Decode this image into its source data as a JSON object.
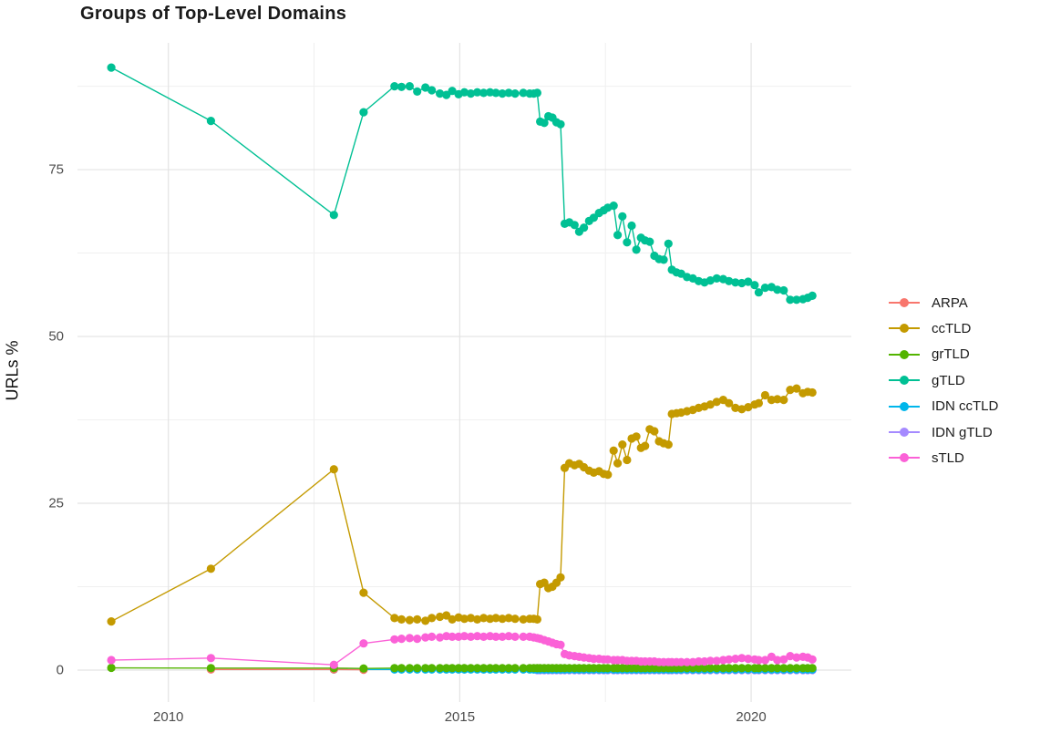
{
  "chart_data": {
    "type": "line",
    "title": "Groups of Top-Level Domains",
    "xlabel": "",
    "ylabel": "URLs %",
    "x_axis": {
      "range": [
        2008.44,
        2021.72
      ],
      "ticks_major": [
        2010,
        2015,
        2020
      ],
      "ticks_minor": [
        2012.5,
        2017.5
      ],
      "tick_labels": [
        "2010",
        "2015",
        "2020"
      ]
    },
    "y_axis": {
      "range": [
        -4.78,
        94.0
      ],
      "ticks_major": [
        0,
        25,
        50,
        75
      ],
      "ticks_minor": [
        12.5,
        37.5,
        62.5,
        87.5
      ],
      "tick_labels": [
        "0",
        "25",
        "50",
        "75"
      ]
    },
    "legend_position": "right",
    "grid": "on",
    "x_grids": {
      "early": [
        2009.02,
        2010.73,
        2012.84,
        2013.35
      ],
      "plateau": [
        2013.88,
        2014.0,
        2014.14,
        2014.27,
        2014.41,
        2014.52,
        2014.66,
        2014.77,
        2014.87,
        2014.98,
        2015.08,
        2015.19,
        2015.3,
        2015.41,
        2015.52,
        2015.62,
        2015.73,
        2015.84,
        2015.95,
        2016.09,
        2016.2,
        2016.27,
        2016.33
      ],
      "step": [
        2016.38,
        2016.45,
        2016.52,
        2016.59,
        2016.66,
        2016.73
      ],
      "late": [
        2016.8,
        2016.88,
        2016.97,
        2017.05,
        2017.13,
        2017.22,
        2017.3,
        2017.39,
        2017.47,
        2017.54,
        2017.64,
        2017.71,
        2017.79,
        2017.87,
        2017.95,
        2018.03,
        2018.11,
        2018.18,
        2018.26,
        2018.34,
        2018.42,
        2018.5,
        2018.58,
        2018.64,
        2018.72,
        2018.8,
        2018.9,
        2019.0,
        2019.1,
        2019.2,
        2019.3,
        2019.41,
        2019.52,
        2019.62,
        2019.73,
        2019.84,
        2019.95,
        2020.06,
        2020.13,
        2020.24,
        2020.35,
        2020.45,
        2020.56,
        2020.67,
        2020.78,
        2020.89,
        2020.97,
        2021.05
      ]
    },
    "series": [
      {
        "name": "ARPA",
        "color": "#F8766D",
        "draw_order": 3,
        "segments": [
          {
            "points": [
              [
                2010.73,
                0.1
              ],
              [
                2012.84,
                0.1
              ],
              [
                2013.35,
                0.05
              ]
            ]
          }
        ]
      },
      {
        "name": "ccTLD",
        "color": "#C49A00",
        "draw_order": 6,
        "segments": [
          {
            "points": [
              [
                2009.02,
                7.3
              ],
              [
                2010.73,
                15.2
              ],
              [
                2012.84,
                30.1
              ],
              [
                2013.35,
                11.6
              ]
            ]
          },
          {
            "x_ref": "plateau",
            "y": [
              7.8,
              7.6,
              7.5,
              7.6,
              7.4,
              7.8,
              8.0,
              8.2,
              7.6,
              7.9,
              7.7,
              7.8,
              7.6,
              7.8,
              7.7,
              7.8,
              7.7,
              7.8,
              7.7,
              7.6,
              7.7,
              7.7,
              7.6
            ]
          },
          {
            "x_ref": "step",
            "y": [
              12.9,
              13.1,
              12.3,
              12.5,
              13.1,
              13.9
            ]
          },
          {
            "x_ref": "late",
            "y": [
              30.3,
              31.0,
              30.7,
              30.9,
              30.4,
              29.9,
              29.6,
              29.8,
              29.4,
              29.3,
              32.9,
              31.0,
              33.8,
              31.5,
              34.7,
              35.0,
              33.3,
              33.6,
              36.1,
              35.8,
              34.3,
              34.0,
              33.8,
              38.4,
              38.5,
              38.6,
              38.8,
              39.0,
              39.3,
              39.5,
              39.8,
              40.2,
              40.5,
              40.0,
              39.3,
              39.1,
              39.4,
              39.8,
              40.0,
              41.2,
              40.5,
              40.6,
              40.5,
              42.0,
              42.2,
              41.5,
              41.7,
              41.6
            ]
          }
        ]
      },
      {
        "name": "grTLD",
        "color": "#53B400",
        "draw_order": 4,
        "segments": [
          {
            "points": [
              [
                2009.02,
                0.35
              ],
              [
                2010.73,
                0.3
              ],
              [
                2012.84,
                0.3
              ],
              [
                2013.35,
                0.25
              ]
            ]
          },
          {
            "x_ref": "plateau",
            "y_const": 0.3
          },
          {
            "x_ref": "step",
            "y_const": 0.3
          },
          {
            "x_ref": "late",
            "y_const": 0.3
          }
        ]
      },
      {
        "name": "gTLD",
        "color": "#00C094",
        "draw_order": 7,
        "segments": [
          {
            "points": [
              [
                2009.02,
                90.3
              ],
              [
                2010.73,
                82.3
              ],
              [
                2012.84,
                68.2
              ],
              [
                2013.35,
                83.6
              ]
            ]
          },
          {
            "x_ref": "plateau",
            "y": [
              87.5,
              87.4,
              87.5,
              86.7,
              87.3,
              86.9,
              86.4,
              86.2,
              86.8,
              86.3,
              86.6,
              86.4,
              86.6,
              86.5,
              86.6,
              86.5,
              86.4,
              86.5,
              86.4,
              86.5,
              86.4,
              86.4,
              86.5
            ]
          },
          {
            "x_ref": "step",
            "y": [
              82.2,
              82.0,
              83.0,
              82.8,
              82.1,
              81.8
            ]
          },
          {
            "x_ref": "late",
            "y": [
              66.9,
              67.1,
              66.7,
              65.7,
              66.3,
              67.3,
              67.8,
              68.5,
              68.9,
              69.3,
              69.6,
              65.2,
              68.0,
              64.1,
              66.6,
              63.0,
              64.8,
              64.4,
              64.2,
              62.1,
              61.6,
              61.5,
              63.9,
              60.0,
              59.6,
              59.4,
              58.9,
              58.7,
              58.3,
              58.1,
              58.4,
              58.7,
              58.6,
              58.3,
              58.1,
              58.0,
              58.2,
              57.7,
              56.6,
              57.3,
              57.4,
              57.0,
              56.9,
              55.5,
              55.5,
              55.6,
              55.8,
              56.1
            ]
          }
        ]
      },
      {
        "name": "IDN ccTLD",
        "color": "#00B6EB",
        "draw_order": 2,
        "segments": [
          {
            "points": [
              [
                2012.84,
                0.1
              ],
              [
                2013.35,
                0.1
              ]
            ]
          },
          {
            "x_ref": "plateau",
            "y_const": 0.1
          },
          {
            "x_ref": "step",
            "y_const": 0.1
          },
          {
            "x_ref": "late",
            "y_const": 0.1
          }
        ]
      },
      {
        "name": "IDN gTLD",
        "color": "#A58AFF",
        "draw_order": 1,
        "segments": [
          {
            "points": [
              [
                2016.33,
                0.0
              ]
            ]
          },
          {
            "x_ref": "step",
            "y_const": 0.0
          },
          {
            "x_ref": "late",
            "y_const": 0.0
          }
        ]
      },
      {
        "name": "sTLD",
        "color": "#FB61D7",
        "draw_order": 5,
        "segments": [
          {
            "points": [
              [
                2009.02,
                1.5
              ],
              [
                2010.73,
                1.8
              ],
              [
                2012.84,
                0.8
              ],
              [
                2013.35,
                4.0
              ]
            ]
          },
          {
            "x_ref": "plateau",
            "y": [
              4.6,
              4.7,
              4.8,
              4.7,
              4.9,
              5.0,
              4.9,
              5.1,
              5.0,
              5.0,
              5.1,
              5.0,
              5.1,
              5.0,
              5.1,
              5.0,
              5.0,
              5.1,
              5.0,
              5.0,
              5.0,
              4.9,
              4.8
            ]
          },
          {
            "x_ref": "step",
            "y": [
              4.7,
              4.5,
              4.3,
              4.1,
              3.9,
              3.8
            ]
          },
          {
            "x_ref": "late",
            "y": [
              2.4,
              2.2,
              2.1,
              2.0,
              1.9,
              1.8,
              1.7,
              1.7,
              1.6,
              1.6,
              1.5,
              1.5,
              1.5,
              1.4,
              1.4,
              1.4,
              1.3,
              1.3,
              1.3,
              1.3,
              1.2,
              1.2,
              1.2,
              1.2,
              1.2,
              1.2,
              1.2,
              1.2,
              1.3,
              1.3,
              1.4,
              1.4,
              1.5,
              1.6,
              1.7,
              1.8,
              1.7,
              1.6,
              1.5,
              1.5,
              2.0,
              1.5,
              1.6,
              2.1,
              1.9,
              2.0,
              1.9,
              1.6
            ]
          }
        ]
      }
    ],
    "style": {
      "grid_major_color": "#E3E3E3",
      "grid_minor_color": "#F0F0F0",
      "background": "#FFFFFF",
      "point_radius": 4.6,
      "line_width": 1.4
    }
  }
}
